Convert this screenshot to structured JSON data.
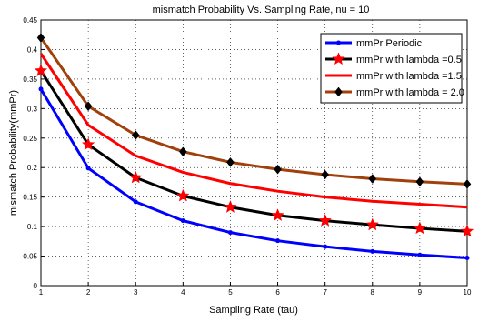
{
  "chart_data": {
    "type": "line",
    "title": "mismatch Probability Vs. Sampling Rate, nu = 10",
    "xlabel": "Sampling Rate (tau)",
    "ylabel": "mismatch Probability(mmPr)",
    "xlim": [
      1,
      10
    ],
    "ylim": [
      0,
      0.45
    ],
    "xticks": [
      "1",
      "2",
      "3",
      "4",
      "5",
      "6",
      "7",
      "8",
      "9",
      "10"
    ],
    "yticks": [
      "0",
      "0.05",
      "0.1",
      "0.15",
      "0.2",
      "0.25",
      "0.3",
      "0.35",
      "0.4",
      "0.45"
    ],
    "grid": true,
    "legend_position": "top-right",
    "x": [
      1,
      2,
      3,
      4,
      5,
      6,
      7,
      8,
      9,
      10
    ],
    "series": [
      {
        "name": "mmPr Periodic",
        "color": "#0000ff",
        "marker": "dot",
        "values": [
          0.333,
          0.199,
          0.142,
          0.11,
          0.09,
          0.076,
          0.066,
          0.058,
          0.052,
          0.047
        ]
      },
      {
        "name": "mmPr with lambda =0.5",
        "color": "#000000",
        "marker": "none",
        "values": [
          0.364,
          0.239,
          0.183,
          0.152,
          0.133,
          0.119,
          0.11,
          0.103,
          0.097,
          0.092
        ]
      },
      {
        "name": "mmPr with lambda =1.5",
        "color": "#ff0000",
        "marker": "none",
        "values": [
          0.393,
          0.272,
          0.22,
          0.192,
          0.173,
          0.16,
          0.15,
          0.143,
          0.138,
          0.133
        ]
      },
      {
        "name": "mmPr with lambda = 2.0",
        "color": "#a0400a",
        "marker": "none",
        "values": [
          0.42,
          0.304,
          0.255,
          0.227,
          0.209,
          0.197,
          0.188,
          0.181,
          0.176,
          0.172
        ]
      }
    ],
    "overlay_markers": [
      {
        "series_index": 1,
        "shape": "star",
        "color": "#ff0000"
      },
      {
        "series_index": 3,
        "shape": "diamond",
        "color": "#000000"
      }
    ]
  }
}
